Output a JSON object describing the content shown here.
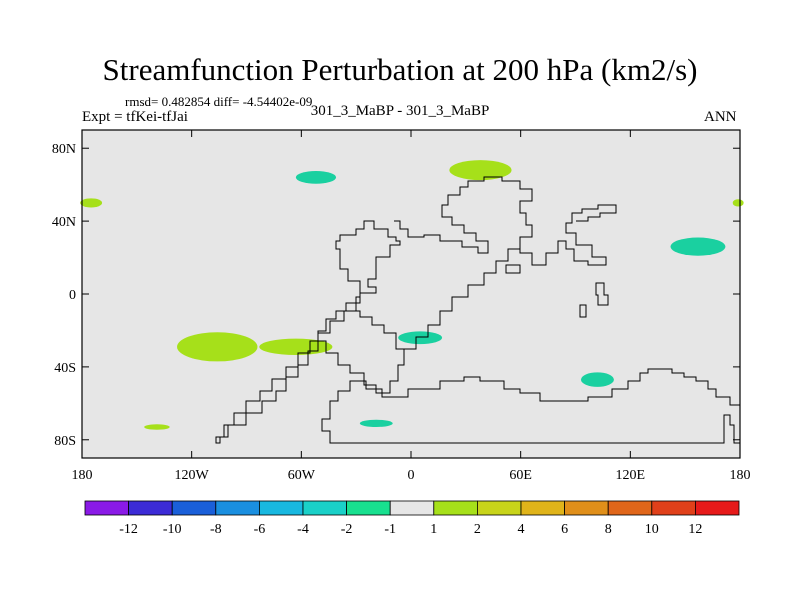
{
  "header": {
    "title": "Streamfunction Perturbation at 200 hPa (km2/s)",
    "stats": "rmsd= 0.482854  diff= -4.54402e-09",
    "expt": "Expt = tfKei-tfJai",
    "center_label": "301_3_MaBP - 301_3_MaBP",
    "season": "ANN"
  },
  "map": {
    "background_color": "#e6e6e6",
    "x_ticks": [
      "180",
      "120W",
      "60W",
      "0",
      "60E",
      "120E",
      "180"
    ],
    "y_ticks": [
      "80N",
      "40N",
      "0",
      "40S",
      "80S"
    ]
  },
  "colorbar": {
    "colors": [
      "#8a1ae6",
      "#3c2bd6",
      "#1a5fd9",
      "#1a8fe0",
      "#18b8e0",
      "#1ad0c8",
      "#18e08f",
      "#e6e6e6",
      "#a6e01a",
      "#c8d41a",
      "#e0b41a",
      "#e08f1a",
      "#e0661a",
      "#e0401a",
      "#e61a1a"
    ],
    "labels": [
      "-12",
      "-10",
      "-8",
      "-6",
      "-4",
      "-2",
      "-1",
      "1",
      "2",
      "4",
      "6",
      "8",
      "10",
      "12"
    ]
  },
  "chart_data": {
    "type": "heatmap",
    "title": "Streamfunction Perturbation at 200 hPa (km2/s)",
    "xlim": [
      -180,
      180
    ],
    "ylim": [
      -90,
      90
    ],
    "levels": [
      -12,
      -10,
      -8,
      -6,
      -4,
      -2,
      -1,
      1,
      2,
      4,
      6,
      8,
      10,
      12
    ],
    "features": [
      {
        "range": "-2 to -1",
        "color": "#1ad0a0",
        "lon": -52,
        "lat": 64,
        "rlon": 11,
        "rlat": 3.5
      },
      {
        "range": "-2 to -1",
        "color": "#1ad0a0",
        "lon": 5,
        "lat": -24,
        "rlon": 12,
        "rlat": 3.5
      },
      {
        "range": "-2 to -1",
        "color": "#1ad0a0",
        "lon": 102,
        "lat": -47,
        "rlon": 9,
        "rlat": 4
      },
      {
        "range": "-2 to -1",
        "color": "#1ad0a0",
        "lon": 157,
        "lat": 26,
        "rlon": 15,
        "rlat": 5
      },
      {
        "range": "-2 to -1",
        "color": "#1ad0a0",
        "lon": -19,
        "lat": -71,
        "rlon": 9,
        "rlat": 2
      },
      {
        "range": "1 to 2",
        "color": "#a6e01a",
        "lon": 38,
        "lat": 68,
        "rlon": 17,
        "rlat": 5.5
      },
      {
        "range": "1 to 2",
        "color": "#a6e01a",
        "lon": -106,
        "lat": -29,
        "rlon": 22,
        "rlat": 8
      },
      {
        "range": "1 to 2",
        "color": "#a6e01a",
        "lon": -63,
        "lat": -29,
        "rlon": 20,
        "rlat": 4.5
      },
      {
        "range": "1 to 2",
        "color": "#a6e01a",
        "lon": -175,
        "lat": 50,
        "rlon": 6,
        "rlat": 2.5
      },
      {
        "range": "1 to 2",
        "color": "#a6e01a",
        "lon": 179,
        "lat": 50,
        "rlon": 3,
        "rlat": 2
      },
      {
        "range": "1 to 2",
        "color": "#a6e01a",
        "lon": -139,
        "lat": -73,
        "rlon": 7,
        "rlat": 1.5
      }
    ]
  }
}
